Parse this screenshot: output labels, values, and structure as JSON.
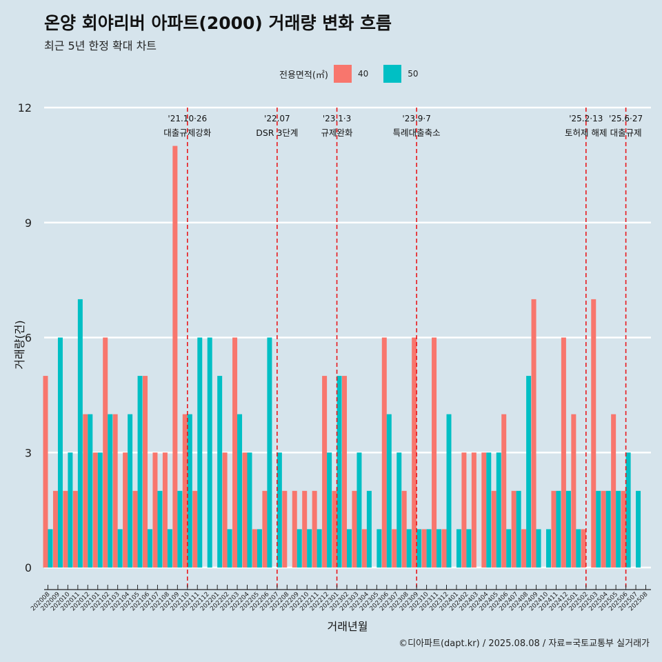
{
  "title": "온양 회야리버 아파트(2000) 거래량 변화 흐름",
  "subtitle": "최근 5년 한정 확대 차트",
  "caption": "©디아파트(dapt.kr) / 2025.08.08 / 자료=국토교통부 실거래가",
  "colors": {
    "s40": "#f8766d",
    "s50": "#00bfc4",
    "grid": "#ffffff",
    "event": "#e8181c"
  },
  "chart_data": {
    "type": "bar",
    "title": "온양 회야리버 아파트(2000) 거래량 변화 흐름",
    "xlabel": "거래년월",
    "ylabel": "거래량(건)",
    "ylim": [
      0,
      12
    ],
    "yticks": [
      0,
      3,
      6,
      9,
      12
    ],
    "legend_title": "전용면적(㎡)",
    "legend_position": "top",
    "categories": [
      "202008",
      "202009",
      "202010",
      "202011",
      "202012",
      "202101",
      "202102",
      "202103",
      "202104",
      "202105",
      "202106",
      "202107",
      "202108",
      "202109",
      "202110",
      "202111",
      "202112",
      "202201",
      "202202",
      "202203",
      "202204",
      "202205",
      "202206",
      "202207",
      "202208",
      "202209",
      "202210",
      "202211",
      "202212",
      "202301",
      "202302",
      "202303",
      "202304",
      "202305",
      "202306",
      "202307",
      "202308",
      "202309",
      "202310",
      "202311",
      "202312",
      "202401",
      "202402",
      "202403",
      "202404",
      "202405",
      "202406",
      "202407",
      "202408",
      "202409",
      "202410",
      "202411",
      "202412",
      "202501",
      "202502",
      "202503",
      "202504",
      "202505",
      "202506",
      "202507",
      "202508"
    ],
    "series": [
      {
        "name": "40",
        "values": [
          5,
          2,
          2,
          2,
          4,
          3,
          6,
          4,
          3,
          2,
          5,
          3,
          3,
          11,
          4,
          2,
          0,
          0,
          3,
          6,
          3,
          1,
          2,
          0,
          2,
          2,
          2,
          2,
          5,
          2,
          5,
          2,
          1,
          0,
          6,
          1,
          2,
          6,
          1,
          6,
          1,
          0,
          3,
          3,
          3,
          2,
          4,
          2,
          1,
          7,
          0,
          2,
          6,
          4,
          1,
          7,
          2,
          4,
          2,
          0,
          0
        ]
      },
      {
        "name": "50",
        "values": [
          1,
          6,
          3,
          7,
          4,
          3,
          4,
          1,
          4,
          5,
          1,
          2,
          1,
          2,
          4,
          6,
          6,
          5,
          1,
          4,
          3,
          1,
          6,
          3,
          0,
          1,
          1,
          1,
          3,
          5,
          1,
          3,
          2,
          1,
          4,
          3,
          1,
          1,
          1,
          1,
          4,
          1,
          1,
          0,
          3,
          3,
          1,
          2,
          5,
          1,
          1,
          2,
          2,
          1,
          0,
          2,
          2,
          2,
          3,
          2,
          0
        ]
      }
    ],
    "events": [
      {
        "index": 14.0,
        "date": "'21.10·26",
        "label": "대출규제강화"
      },
      {
        "index": 23.0,
        "date": "'22.07",
        "label": "DSR 3단계"
      },
      {
        "index": 29.0,
        "date": "'23.1·3",
        "label": "규제완화"
      },
      {
        "index": 37.0,
        "date": "'23.9·7",
        "label": "특례대출축소"
      },
      {
        "index": 54.0,
        "date": "'25.2·13",
        "label": "토허제 해제"
      },
      {
        "index": 58.0,
        "date": "'25.6·27",
        "label": "대출규제"
      }
    ]
  }
}
